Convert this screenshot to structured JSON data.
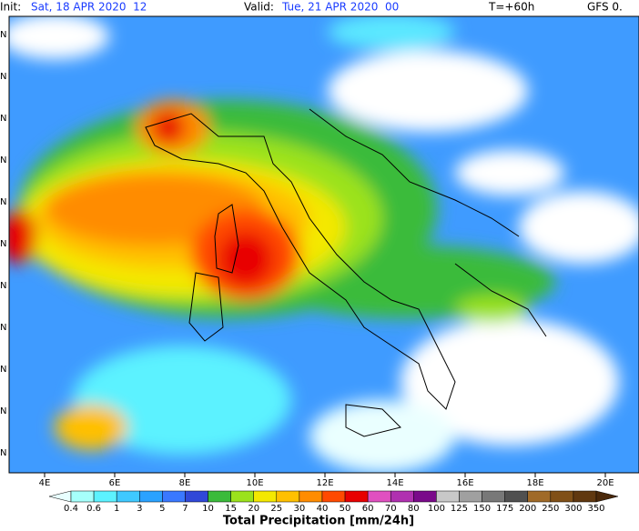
{
  "header": {
    "init_label": "Init:",
    "init_time": "Sat, 18 APR 2020  12",
    "valid_label": "Valid:",
    "valid_time": "Tue, 21 APR 2020  00",
    "step": "T=+60h",
    "model": "GFS 0."
  },
  "map": {
    "lon_labels": [
      "4E",
      "6E",
      "8E",
      "10E",
      "12E",
      "14E",
      "16E",
      "18E",
      "20E"
    ],
    "lat_labels": [
      "N",
      "N",
      "N",
      "N",
      "N",
      "N",
      "N",
      "N",
      "N",
      "N",
      "N"
    ]
  },
  "colorbar": {
    "title": "Total Precipitation [mm/24h]",
    "labels": [
      "0.4",
      "0.6",
      "1",
      "3",
      "5",
      "7",
      "10",
      "15",
      "20",
      "25",
      "30",
      "40",
      "50",
      "60",
      "70",
      "80",
      "100",
      "125",
      "150",
      "175",
      "200",
      "250",
      "300",
      "350"
    ],
    "colors": [
      "#e8ffff",
      "#a6fffb",
      "#5cf2ff",
      "#3fc9ff",
      "#2aa2ff",
      "#3a78ff",
      "#3048d8",
      "#3bbb3b",
      "#9be21c",
      "#f4e800",
      "#ffc000",
      "#ff8c00",
      "#ff4a00",
      "#e80000",
      "#e050c0",
      "#b030b0",
      "#7a0a8a",
      "#c8c8c8",
      "#a0a0a0",
      "#787878",
      "#505050",
      "#a06a28",
      "#805018",
      "#603810",
      "#4a280a"
    ]
  }
}
